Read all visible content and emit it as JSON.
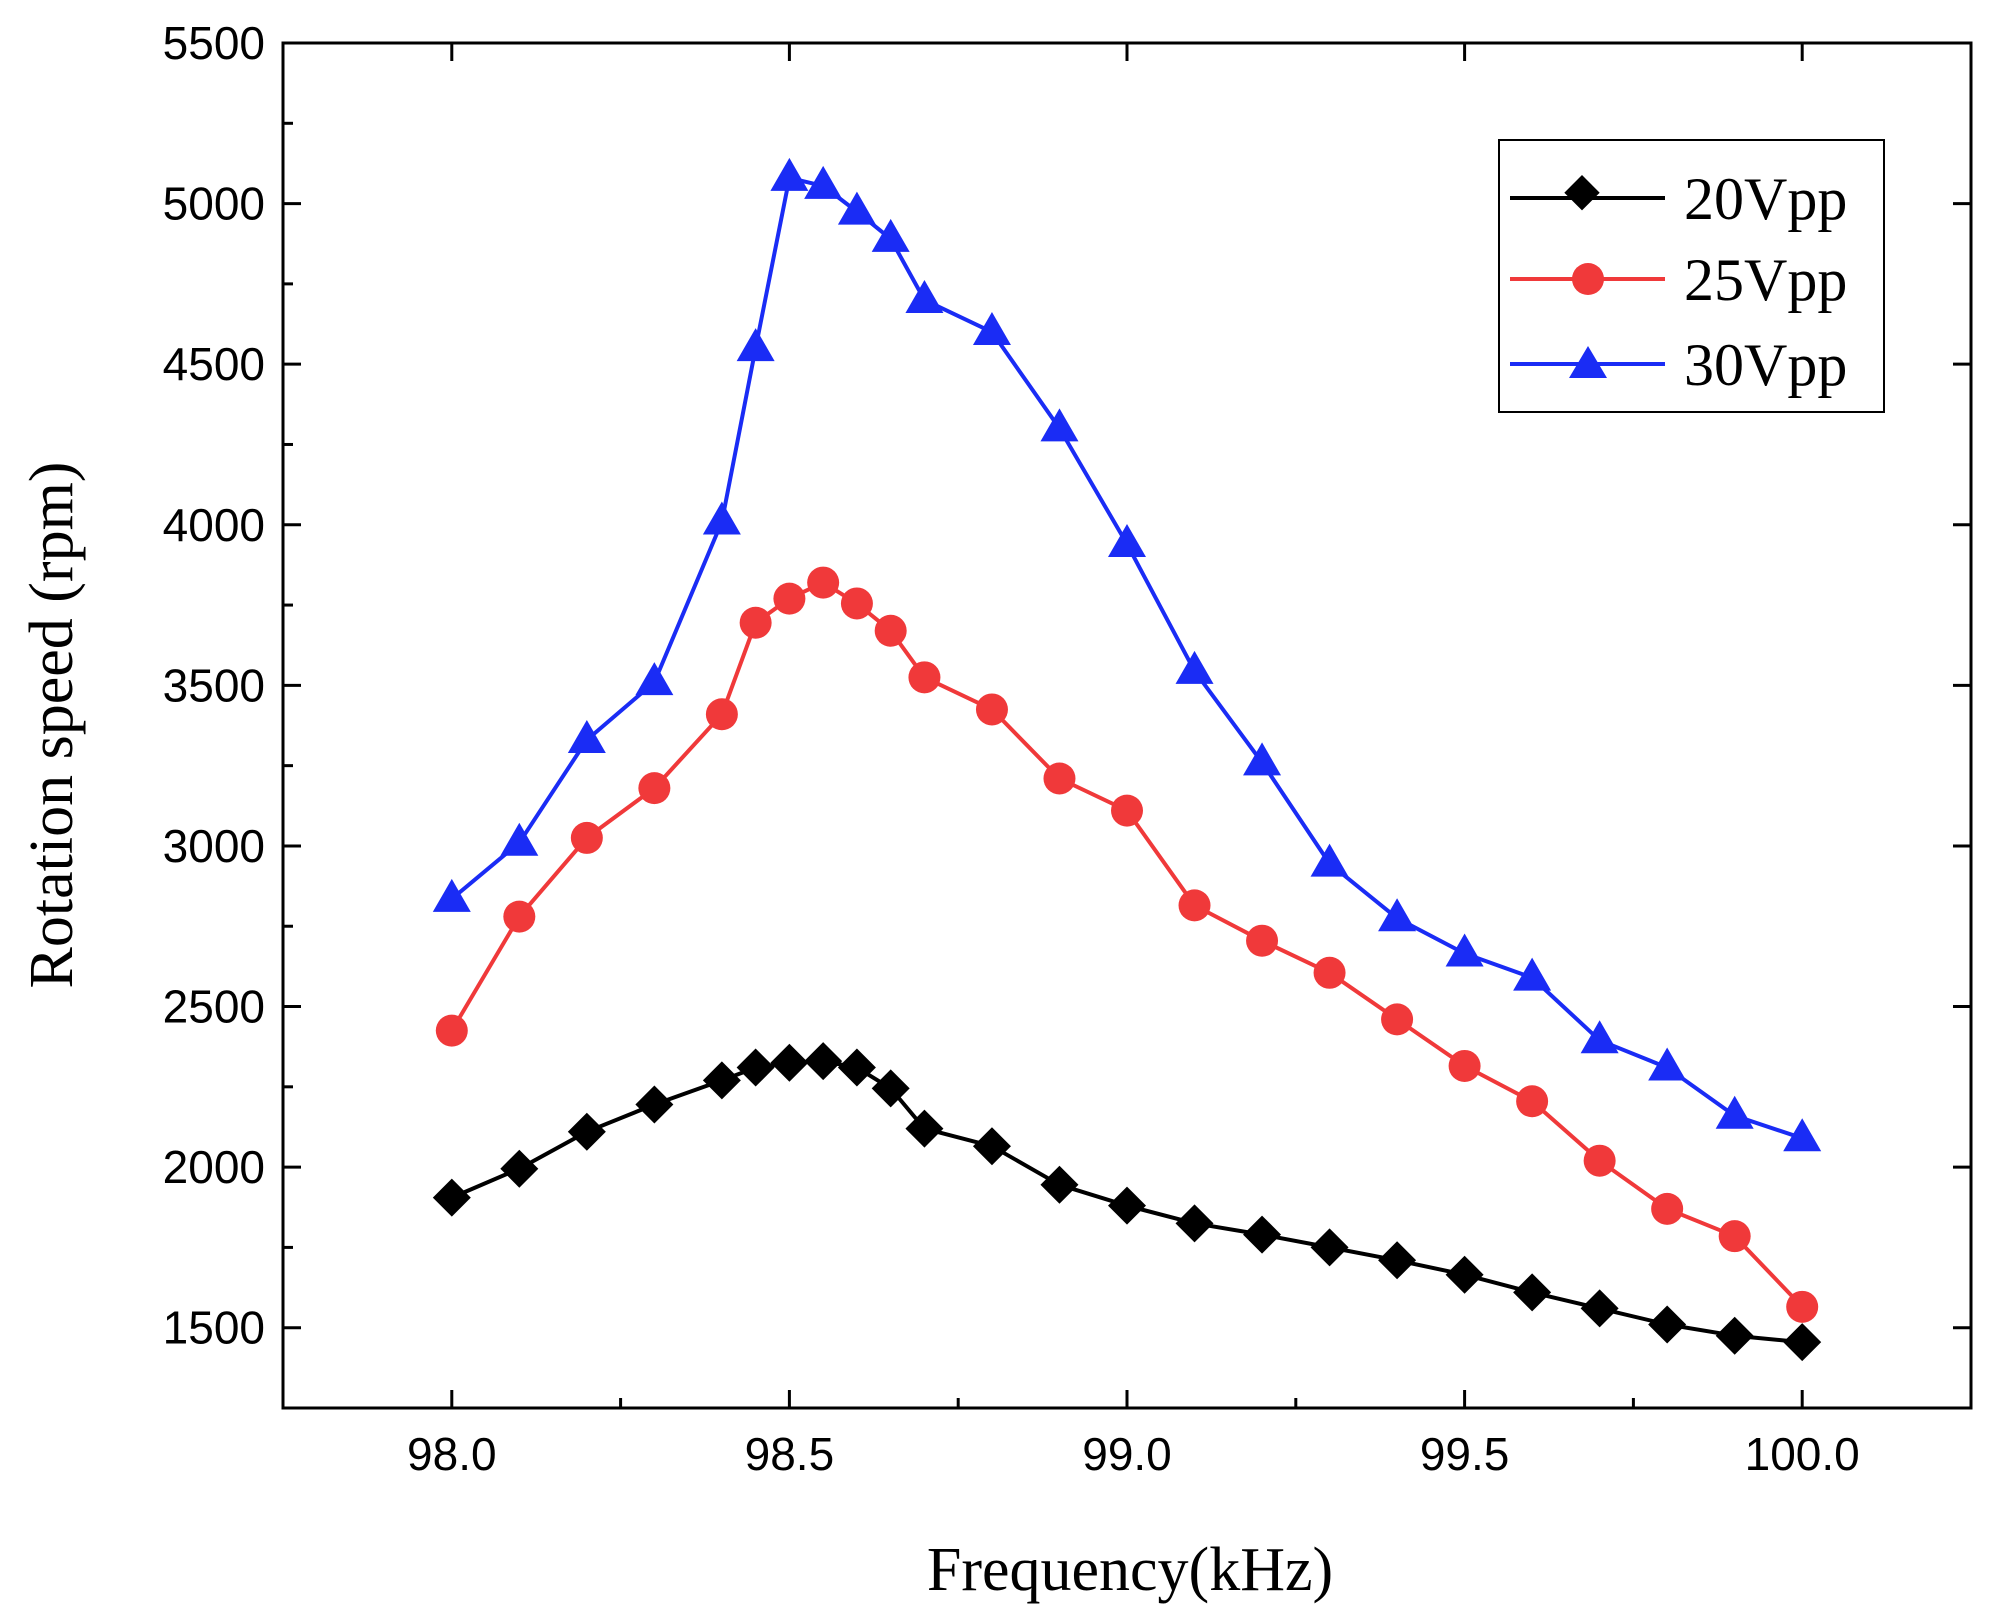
{
  "chart_data": {
    "type": "line",
    "title": "",
    "xlabel": "Frequency(kHz)",
    "ylabel": "Rotation speed (rpm)",
    "xlim": [
      97.75,
      100.25
    ],
    "ylim": [
      1250,
      5500
    ],
    "xticks": [
      "98.0",
      "98.5",
      "99.0",
      "99.5",
      "100.0"
    ],
    "xtick_values": [
      98.0,
      98.5,
      99.0,
      99.5,
      100.0
    ],
    "yticks": [
      "1500",
      "2000",
      "2500",
      "3000",
      "3500",
      "4000",
      "4500",
      "5000",
      "5500"
    ],
    "ytick_values": [
      1500,
      2000,
      2500,
      3000,
      3500,
      4000,
      4500,
      5000,
      5500
    ],
    "grid": false,
    "legend_position": "top-right",
    "x": [
      98.0,
      98.1,
      98.2,
      98.3,
      98.4,
      98.45,
      98.5,
      98.55,
      98.6,
      98.65,
      98.7,
      98.8,
      98.9,
      99.0,
      99.1,
      99.2,
      99.3,
      99.4,
      99.5,
      99.6,
      99.7,
      99.8,
      99.9,
      100.0
    ],
    "series": [
      {
        "name": "20Vpp",
        "color": "#000000",
        "marker": "diamond",
        "values": [
          1905,
          1995,
          2110,
          2195,
          2270,
          2310,
          2325,
          2330,
          2310,
          2245,
          2120,
          2065,
          1945,
          1880,
          1825,
          1790,
          1750,
          1710,
          1665,
          1610,
          1560,
          1510,
          1475,
          1455
        ]
      },
      {
        "name": "25Vpp",
        "color": "#f0393a",
        "marker": "circle",
        "values": [
          2425,
          2780,
          3025,
          3180,
          3410,
          3695,
          3770,
          3820,
          3755,
          3670,
          3525,
          3425,
          3210,
          3110,
          2815,
          2705,
          2605,
          2460,
          2315,
          2205,
          2020,
          1870,
          1785,
          1565
        ]
      },
      {
        "name": "30Vpp",
        "color": "#1a2cf5",
        "marker": "triangle",
        "values": [
          2835,
          3010,
          3330,
          3510,
          4010,
          4550,
          5080,
          5055,
          4975,
          4890,
          4700,
          4600,
          4300,
          3940,
          3545,
          3260,
          2945,
          2775,
          2665,
          2590,
          2395,
          2310,
          2160,
          2090
        ]
      }
    ]
  }
}
